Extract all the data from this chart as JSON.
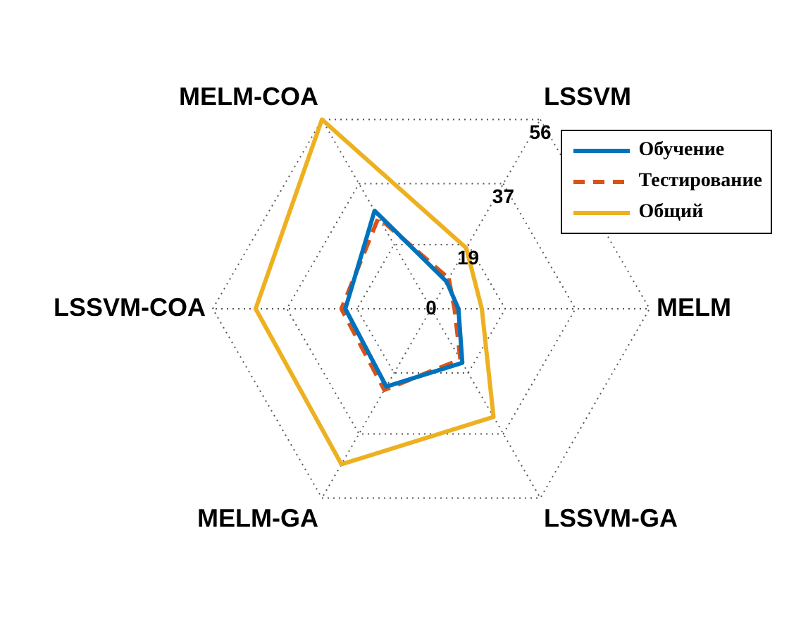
{
  "chart_data": {
    "type": "radar",
    "categories": [
      "LSSVM",
      "MELM",
      "LSSVM-GA",
      "MELM-GA",
      "LSSVM-COA",
      "MELM-COA"
    ],
    "series": [
      {
        "name": "Обучение",
        "color": "#0072bd",
        "values": [
          8,
          7,
          16,
          23,
          22,
          29
        ]
      },
      {
        "name": "Тестирование",
        "color": "#d95319",
        "values": [
          9,
          6,
          15,
          24,
          23,
          27
        ],
        "line_style": "dashed"
      },
      {
        "name": "Общий",
        "color": "#edb120",
        "values": [
          18,
          13,
          32,
          46,
          45,
          56
        ]
      }
    ],
    "ylim": [
      0,
      56
    ],
    "yticks": [
      0,
      19,
      37,
      56
    ],
    "grid": true,
    "legend": "top right",
    "marker": "none",
    "line_style": "solid"
  }
}
